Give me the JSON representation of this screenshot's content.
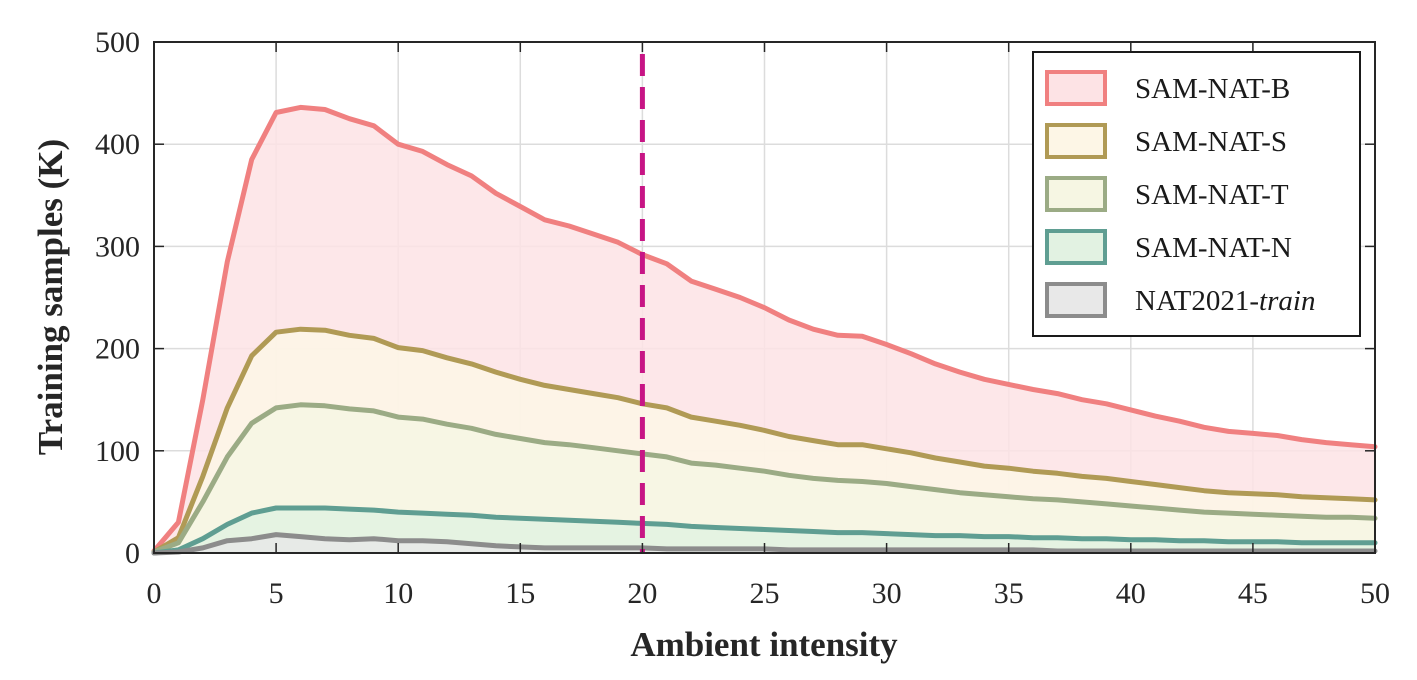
{
  "chart_data": {
    "type": "area",
    "xlabel": "Ambient intensity",
    "ylabel": "Training samples (K)",
    "xlim": [
      0,
      50
    ],
    "ylim": [
      0,
      500
    ],
    "xticks": [
      0,
      5,
      10,
      15,
      20,
      25,
      30,
      35,
      40,
      45,
      50
    ],
    "yticks": [
      0,
      100,
      200,
      300,
      400,
      500
    ],
    "grid": true,
    "legend_position": "top-right",
    "reference_line": {
      "x": 20,
      "style": "dashed",
      "color": "#c71585"
    },
    "x": [
      0,
      1,
      2,
      3,
      4,
      5,
      6,
      7,
      8,
      9,
      10,
      11,
      12,
      13,
      14,
      15,
      16,
      17,
      18,
      19,
      20,
      21,
      22,
      23,
      24,
      25,
      26,
      27,
      28,
      29,
      30,
      31,
      32,
      33,
      34,
      35,
      36,
      37,
      38,
      39,
      40,
      41,
      42,
      43,
      44,
      45,
      46,
      47,
      48,
      49,
      50
    ],
    "series": [
      {
        "name": "SAM-NAT-B",
        "line_color": "#f08080",
        "fill_color": "#fde3e5",
        "values": [
          2,
          30,
          150,
          285,
          385,
          431,
          436,
          434,
          425,
          418,
          400,
          393,
          380,
          369,
          352,
          339,
          326,
          320,
          312,
          304,
          292,
          283,
          266,
          258,
          250,
          240,
          228,
          219,
          213,
          212,
          204,
          195,
          185,
          177,
          170,
          165,
          160,
          156,
          150,
          146,
          140,
          134,
          129,
          123,
          119,
          117,
          115,
          111,
          108,
          106,
          104
        ]
      },
      {
        "name": "SAM-NAT-S",
        "line_color": "#b09a55",
        "fill_color": "#fdf6e6",
        "values": [
          1,
          15,
          75,
          142,
          193,
          216,
          219,
          218,
          213,
          210,
          201,
          198,
          191,
          185,
          177,
          170,
          164,
          160,
          156,
          152,
          146,
          142,
          133,
          129,
          125,
          120,
          114,
          110,
          106,
          106,
          102,
          98,
          93,
          89,
          85,
          83,
          80,
          78,
          75,
          73,
          70,
          67,
          64,
          61,
          59,
          58,
          57,
          55,
          54,
          53,
          52
        ]
      },
      {
        "name": "SAM-NAT-T",
        "line_color": "#9bab85",
        "fill_color": "#f6f6e3",
        "values": [
          1,
          10,
          50,
          94,
          127,
          142,
          145,
          144,
          141,
          139,
          133,
          131,
          126,
          122,
          116,
          112,
          108,
          106,
          103,
          100,
          97,
          94,
          88,
          86,
          83,
          80,
          76,
          73,
          71,
          70,
          68,
          65,
          62,
          59,
          57,
          55,
          53,
          52,
          50,
          48,
          46,
          44,
          42,
          40,
          39,
          38,
          37,
          36,
          35,
          35,
          34
        ]
      },
      {
        "name": "SAM-NAT-N",
        "line_color": "#5f9e92",
        "fill_color": "#e2f2e2",
        "values": [
          0,
          3,
          14,
          28,
          39,
          44,
          44,
          44,
          43,
          42,
          40,
          39,
          38,
          37,
          35,
          34,
          33,
          32,
          31,
          30,
          29,
          28,
          26,
          25,
          24,
          23,
          22,
          21,
          20,
          20,
          19,
          18,
          17,
          17,
          16,
          16,
          15,
          15,
          14,
          14,
          13,
          13,
          12,
          12,
          11,
          11,
          11,
          10,
          10,
          10,
          10
        ]
      },
      {
        "name": "NAT2021-train",
        "name_prefix": "NAT2021-",
        "name_italic": "train",
        "line_color": "#8c8c8c",
        "fill_color": "#e8e8e8",
        "values": [
          0,
          1,
          5,
          12,
          14,
          18,
          16,
          14,
          13,
          14,
          12,
          12,
          11,
          9,
          7,
          6,
          5,
          5,
          5,
          5,
          5,
          4,
          4,
          4,
          4,
          4,
          3,
          3,
          3,
          3,
          3,
          3,
          3,
          3,
          3,
          3,
          3,
          2,
          2,
          2,
          2,
          2,
          2,
          2,
          2,
          2,
          2,
          2,
          2,
          2,
          2
        ]
      }
    ]
  }
}
